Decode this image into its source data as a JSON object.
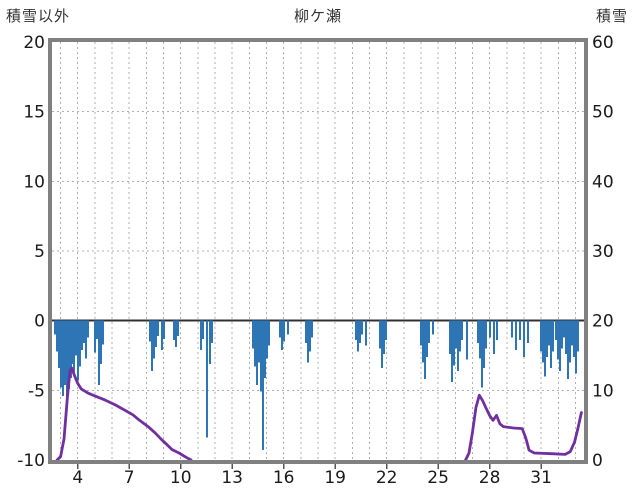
{
  "header": {
    "left_axis_title": "積雪以外",
    "station_title": "柳ケ瀬",
    "right_axis_title": "積雪"
  },
  "colors": {
    "bars": "#2e75b6",
    "snow_line": "#7030a0",
    "border": "#808080",
    "grid": "#b0b0b0",
    "zero_line": "#303030",
    "text": "#1a1a1a"
  },
  "chart_data": {
    "type": "bar",
    "title": "柳ケ瀬",
    "x_axis": {
      "unit": "day",
      "min": 2.5,
      "max": 33.5,
      "tick_days": [
        4,
        7,
        10,
        13,
        16,
        19,
        22,
        25,
        28,
        31
      ],
      "grid_interval_days": 1
    },
    "left_axis": {
      "label": "積雪以外",
      "min": -10,
      "max": 20,
      "ticks": [
        20,
        15,
        10,
        5,
        0,
        -5,
        -10
      ]
    },
    "right_axis": {
      "label": "積雪",
      "min": 0,
      "max": 60,
      "ticks": [
        60,
        50,
        40,
        30,
        20,
        10,
        0
      ]
    },
    "zero_line_left_axis": 0,
    "grid": "dashed",
    "legend": "none",
    "series": [
      {
        "name": "積雪以外",
        "type": "bar",
        "axis": "left",
        "color": "#2e75b6",
        "points": [
          [
            2.7,
            -1.0
          ],
          [
            2.81,
            -2.2
          ],
          [
            2.92,
            -3.4
          ],
          [
            3.03,
            -4.8
          ],
          [
            3.14,
            -5.4
          ],
          [
            3.25,
            -4.6
          ],
          [
            3.36,
            -5.6
          ],
          [
            3.47,
            -4.9
          ],
          [
            3.58,
            -4.1
          ],
          [
            3.69,
            -3.1
          ],
          [
            3.8,
            -3.7
          ],
          [
            3.91,
            -2.5
          ],
          [
            4.02,
            -4.3
          ],
          [
            4.13,
            -3.3
          ],
          [
            4.24,
            -2.1
          ],
          [
            4.35,
            -1.6
          ],
          [
            4.46,
            -2.7
          ],
          [
            4.57,
            -1.2
          ],
          [
            5.0,
            -2.3
          ],
          [
            5.12,
            -1.3
          ],
          [
            5.24,
            -4.6
          ],
          [
            5.36,
            -3.1
          ],
          [
            5.48,
            -1.7
          ],
          [
            8.2,
            -1.5
          ],
          [
            8.32,
            -3.6
          ],
          [
            8.44,
            -2.7
          ],
          [
            8.56,
            -1.9
          ],
          [
            8.68,
            -1.1
          ],
          [
            8.92,
            -2.1
          ],
          [
            9.04,
            -1.3
          ],
          [
            9.6,
            -1.4
          ],
          [
            9.72,
            -1.9
          ],
          [
            9.84,
            -1.1
          ],
          [
            11.2,
            -2.1
          ],
          [
            11.32,
            -1.3
          ],
          [
            11.56,
            -8.4
          ],
          [
            11.68,
            -3.1
          ],
          [
            11.8,
            -1.6
          ],
          [
            14.2,
            -2.0
          ],
          [
            14.32,
            -3.3
          ],
          [
            14.44,
            -4.6
          ],
          [
            14.56,
            -3.0
          ],
          [
            14.68,
            -5.1
          ],
          [
            14.8,
            -9.3
          ],
          [
            14.92,
            -4.1
          ],
          [
            15.04,
            -2.7
          ],
          [
            15.16,
            -1.8
          ],
          [
            15.8,
            -1.2
          ],
          [
            15.92,
            -2.1
          ],
          [
            16.04,
            -1.5
          ],
          [
            16.28,
            -1.0
          ],
          [
            17.28,
            -1.6
          ],
          [
            17.4,
            -3.0
          ],
          [
            17.52,
            -2.2
          ],
          [
            17.64,
            -1.2
          ],
          [
            20.2,
            -1.4
          ],
          [
            20.32,
            -2.2
          ],
          [
            20.44,
            -1.6
          ],
          [
            20.56,
            -1.0
          ],
          [
            20.8,
            -1.8
          ],
          [
            21.6,
            -2.0
          ],
          [
            21.72,
            -3.4
          ],
          [
            21.84,
            -2.4
          ],
          [
            21.96,
            -1.4
          ],
          [
            24.0,
            -1.8
          ],
          [
            24.12,
            -3.0
          ],
          [
            24.24,
            -4.2
          ],
          [
            24.36,
            -2.6
          ],
          [
            24.48,
            -1.6
          ],
          [
            24.72,
            -1.0
          ],
          [
            25.7,
            -2.4
          ],
          [
            25.82,
            -4.4
          ],
          [
            25.94,
            -3.2
          ],
          [
            26.06,
            -2.0
          ],
          [
            26.18,
            -3.6
          ],
          [
            26.3,
            -2.2
          ],
          [
            26.42,
            -1.4
          ],
          [
            26.66,
            -2.8
          ],
          [
            27.3,
            -1.6
          ],
          [
            27.42,
            -2.7
          ],
          [
            27.54,
            -4.8
          ],
          [
            27.66,
            -3.4
          ],
          [
            27.78,
            -2.0
          ],
          [
            28.02,
            -1.2
          ],
          [
            28.26,
            -2.4
          ],
          [
            28.44,
            -1.4
          ],
          [
            29.3,
            -1.2
          ],
          [
            29.54,
            -2.1
          ],
          [
            29.78,
            -1.4
          ],
          [
            30.02,
            -2.6
          ],
          [
            30.26,
            -1.6
          ],
          [
            31.0,
            -2.2
          ],
          [
            31.12,
            -3.0
          ],
          [
            31.24,
            -4.0
          ],
          [
            31.36,
            -2.6
          ],
          [
            31.48,
            -1.8
          ],
          [
            31.6,
            -3.4
          ],
          [
            31.72,
            -2.2
          ],
          [
            31.84,
            -1.4
          ],
          [
            31.96,
            -2.8
          ],
          [
            32.08,
            -3.6
          ],
          [
            32.2,
            -2.0
          ],
          [
            32.32,
            -1.2
          ],
          [
            32.44,
            -2.4
          ],
          [
            32.56,
            -4.2
          ],
          [
            32.68,
            -3.0
          ],
          [
            32.8,
            -1.8
          ],
          [
            32.92,
            -2.6
          ],
          [
            33.04,
            -3.8
          ],
          [
            33.16,
            -2.2
          ]
        ]
      },
      {
        "name": "積雪",
        "type": "line",
        "axis": "right",
        "color": "#7030a0",
        "segments": [
          [
            [
              2.8,
              0.0
            ],
            [
              3.0,
              0.5
            ],
            [
              3.2,
              3.0
            ],
            [
              3.4,
              9.0
            ],
            [
              3.55,
              12.8
            ],
            [
              3.65,
              13.2
            ],
            [
              3.8,
              12.2
            ],
            [
              4.0,
              11.0
            ],
            [
              4.2,
              10.2
            ],
            [
              4.6,
              9.6
            ],
            [
              5.0,
              9.2
            ],
            [
              5.6,
              8.6
            ],
            [
              6.2,
              7.9
            ],
            [
              6.7,
              7.2
            ],
            [
              7.2,
              6.5
            ],
            [
              7.6,
              5.7
            ],
            [
              8.1,
              4.8
            ],
            [
              8.5,
              3.9
            ],
            [
              8.9,
              2.9
            ],
            [
              9.2,
              2.2
            ],
            [
              9.5,
              1.5
            ],
            [
              9.9,
              1.0
            ],
            [
              10.3,
              0.4
            ],
            [
              10.6,
              0.0
            ]
          ],
          [
            [
              26.6,
              0.0
            ],
            [
              26.8,
              1.0
            ],
            [
              27.0,
              4.0
            ],
            [
              27.2,
              7.5
            ],
            [
              27.4,
              9.3
            ],
            [
              27.6,
              8.5
            ],
            [
              27.8,
              7.4
            ],
            [
              28.0,
              6.4
            ],
            [
              28.2,
              5.7
            ],
            [
              28.4,
              6.4
            ],
            [
              28.6,
              5.2
            ],
            [
              28.8,
              4.8
            ],
            [
              29.4,
              4.6
            ],
            [
              29.9,
              4.5
            ],
            [
              30.1,
              3.2
            ],
            [
              30.3,
              1.4
            ],
            [
              30.6,
              1.0
            ],
            [
              31.6,
              0.9
            ],
            [
              32.4,
              0.8
            ],
            [
              32.7,
              1.2
            ],
            [
              32.95,
              2.6
            ],
            [
              33.15,
              4.6
            ],
            [
              33.35,
              6.8
            ]
          ]
        ]
      }
    ]
  }
}
